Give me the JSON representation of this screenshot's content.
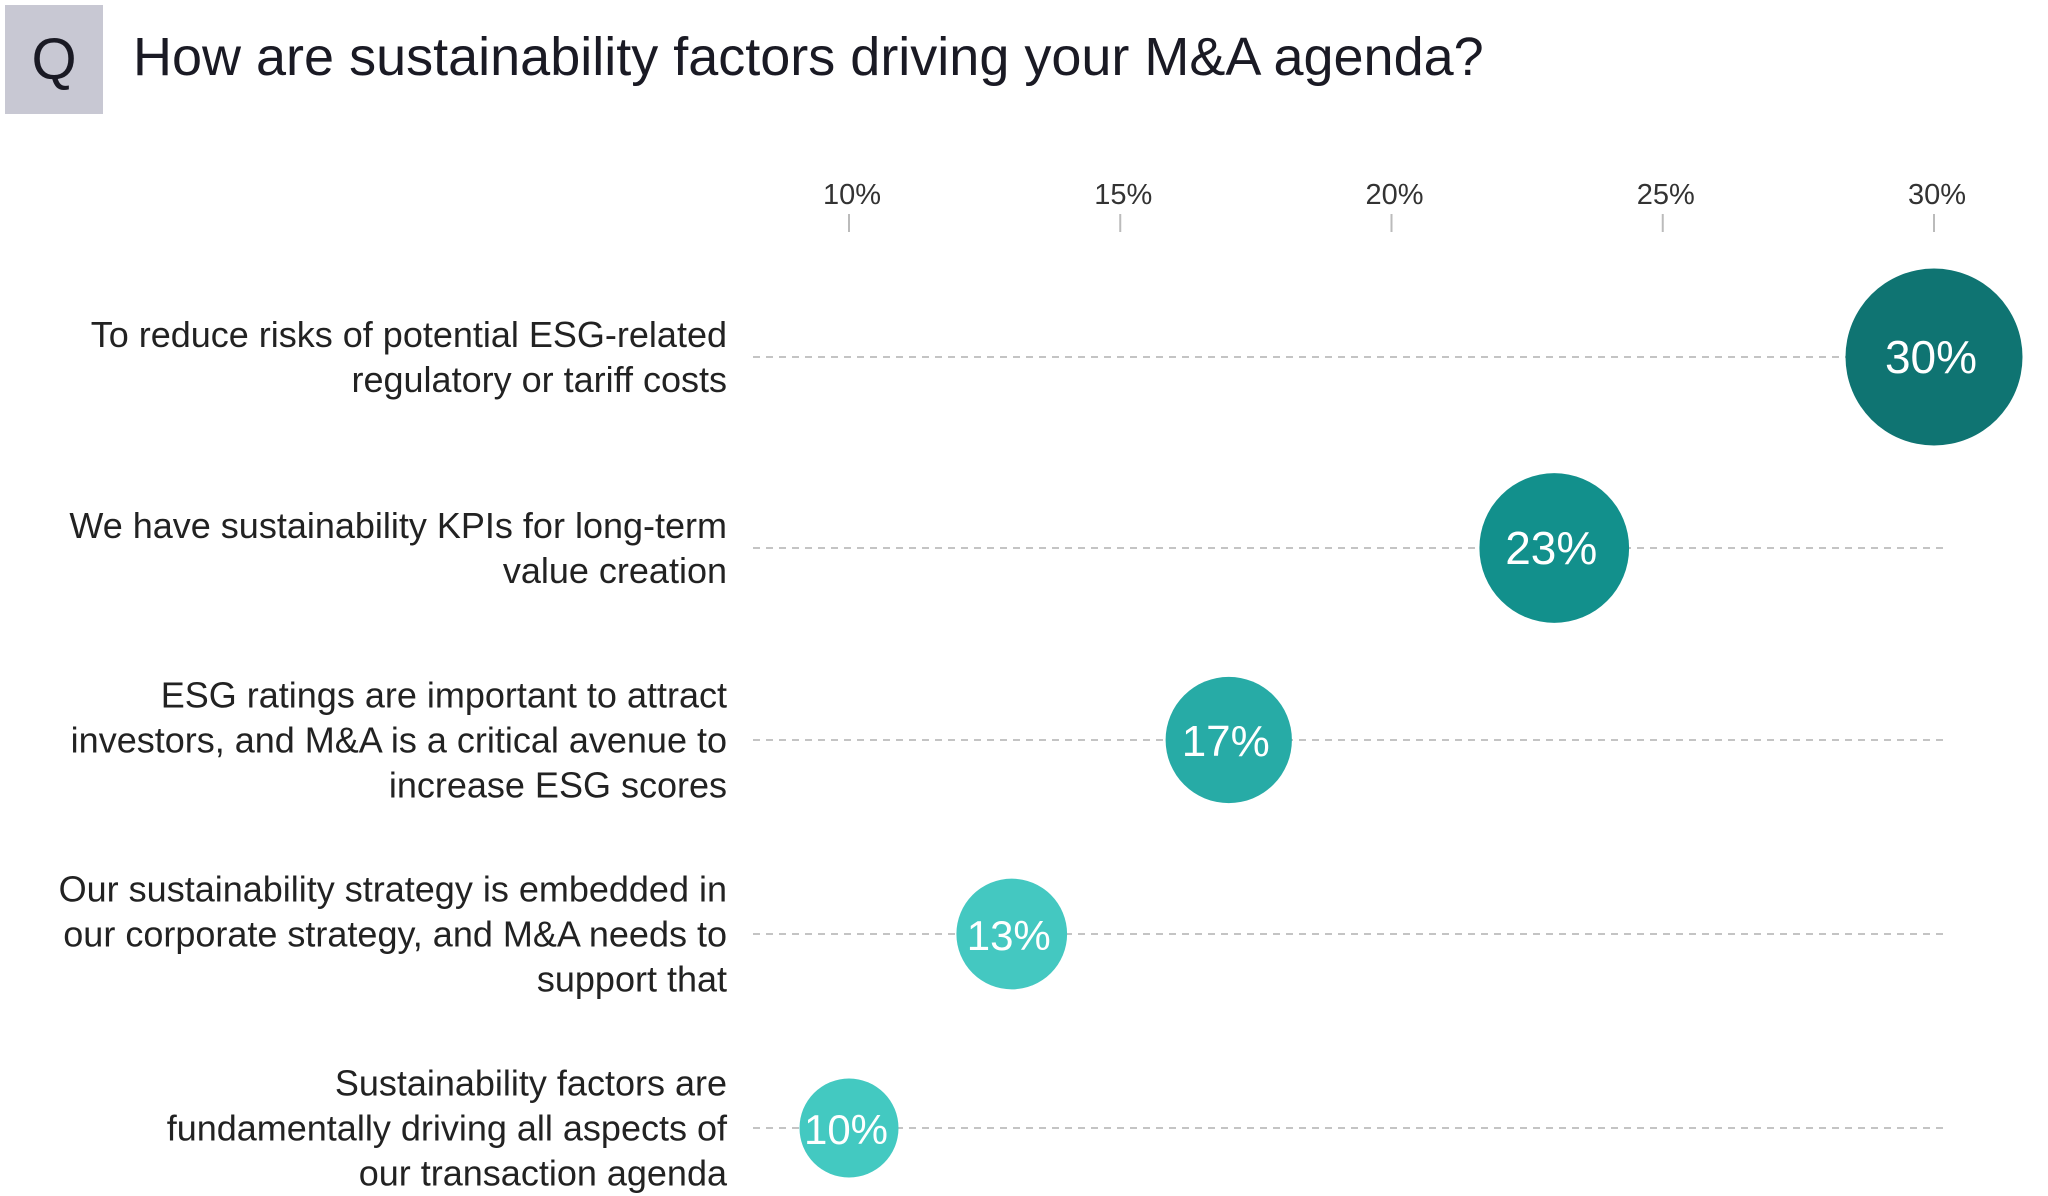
{
  "header": {
    "badge": "Q",
    "title": "How are sustainability factors driving your M&A agenda?"
  },
  "chart_data": {
    "type": "scatter",
    "title": "How are sustainability factors driving your M&A agenda?",
    "xlim": [
      10,
      30
    ],
    "x_ticks": [
      10,
      15,
      20,
      25,
      30
    ],
    "x_tick_labels": [
      "10%",
      "15%",
      "20%",
      "25%",
      "30%"
    ],
    "axis_position": "top",
    "grid": "dashed horizontal guide per category",
    "categories": [
      "To reduce risks of potential ESG-related regulatory or tariff costs",
      "We have sustainability KPIs for long-term value creation",
      "ESG ratings are important to attract investors, and M&A is a critical avenue to increase ESG scores",
      "Our sustainability strategy is embedded in our corporate strategy, and M&A needs to support that",
      "Sustainability factors are fundamentally driving all aspects of our transaction agenda"
    ],
    "values": [
      30,
      23,
      17,
      13,
      10
    ],
    "data_labels": [
      "30%",
      "23%",
      "17%",
      "13%",
      "10%"
    ],
    "colors": [
      "#0f7472",
      "#12908c",
      "#27aba6",
      "#44c8c1",
      "#43c9c1"
    ]
  }
}
